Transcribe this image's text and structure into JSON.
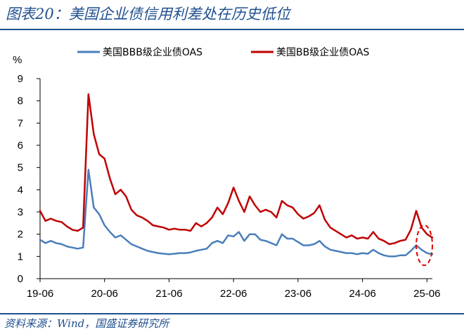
{
  "header": {
    "title": "图表20：美国企业债信用利差处在历史低位"
  },
  "footer": {
    "source": "资料来源：Wind，国盛证券研究所"
  },
  "chart_data": {
    "type": "line",
    "ylabel": "%",
    "ylim": [
      0,
      9
    ],
    "yticks": [
      0,
      1,
      2,
      3,
      4,
      5,
      6,
      7,
      8,
      9
    ],
    "xrange": [
      "2019-06",
      "2025-07"
    ],
    "xticks": [
      {
        "date": "2019-06",
        "label": "19-06"
      },
      {
        "date": "2020-06",
        "label": "20-06"
      },
      {
        "date": "2021-06",
        "label": "21-06"
      },
      {
        "date": "2022-06",
        "label": "22-06"
      },
      {
        "date": "2023-06",
        "label": "23-06"
      },
      {
        "date": "2024-06",
        "label": "24-06"
      },
      {
        "date": "2025-06",
        "label": "25-06"
      }
    ],
    "legend_position": "top",
    "grid": false,
    "series": [
      {
        "name": "美国BBB级企业债OAS",
        "color": "#4a7ebb",
        "points": [
          [
            "2019-06",
            1.75
          ],
          [
            "2019-07",
            1.6
          ],
          [
            "2019-08",
            1.7
          ],
          [
            "2019-09",
            1.6
          ],
          [
            "2019-10",
            1.55
          ],
          [
            "2019-11",
            1.45
          ],
          [
            "2019-12",
            1.4
          ],
          [
            "2020-01",
            1.35
          ],
          [
            "2020-02",
            1.4
          ],
          [
            "2020-03",
            4.9
          ],
          [
            "2020-04",
            3.2
          ],
          [
            "2020-05",
            2.9
          ],
          [
            "2020-06",
            2.4
          ],
          [
            "2020-07",
            2.1
          ],
          [
            "2020-08",
            1.85
          ],
          [
            "2020-09",
            1.95
          ],
          [
            "2020-10",
            1.75
          ],
          [
            "2020-11",
            1.55
          ],
          [
            "2020-12",
            1.45
          ],
          [
            "2021-01",
            1.35
          ],
          [
            "2021-02",
            1.25
          ],
          [
            "2021-03",
            1.2
          ],
          [
            "2021-04",
            1.15
          ],
          [
            "2021-05",
            1.12
          ],
          [
            "2021-06",
            1.1
          ],
          [
            "2021-07",
            1.12
          ],
          [
            "2021-08",
            1.15
          ],
          [
            "2021-09",
            1.15
          ],
          [
            "2021-10",
            1.18
          ],
          [
            "2021-11",
            1.25
          ],
          [
            "2021-12",
            1.3
          ],
          [
            "2022-01",
            1.35
          ],
          [
            "2022-02",
            1.6
          ],
          [
            "2022-03",
            1.7
          ],
          [
            "2022-04",
            1.6
          ],
          [
            "2022-05",
            1.95
          ],
          [
            "2022-06",
            1.9
          ],
          [
            "2022-07",
            2.1
          ],
          [
            "2022-08",
            1.7
          ],
          [
            "2022-09",
            2.0
          ],
          [
            "2022-10",
            2.0
          ],
          [
            "2022-11",
            1.75
          ],
          [
            "2022-12",
            1.7
          ],
          [
            "2023-01",
            1.6
          ],
          [
            "2023-02",
            1.5
          ],
          [
            "2023-03",
            2.0
          ],
          [
            "2023-04",
            1.8
          ],
          [
            "2023-05",
            1.8
          ],
          [
            "2023-06",
            1.65
          ],
          [
            "2023-07",
            1.5
          ],
          [
            "2023-08",
            1.5
          ],
          [
            "2023-09",
            1.55
          ],
          [
            "2023-10",
            1.7
          ],
          [
            "2023-11",
            1.45
          ],
          [
            "2023-12",
            1.3
          ],
          [
            "2024-01",
            1.25
          ],
          [
            "2024-02",
            1.2
          ],
          [
            "2024-03",
            1.15
          ],
          [
            "2024-04",
            1.15
          ],
          [
            "2024-05",
            1.1
          ],
          [
            "2024-06",
            1.15
          ],
          [
            "2024-07",
            1.12
          ],
          [
            "2024-08",
            1.3
          ],
          [
            "2024-09",
            1.15
          ],
          [
            "2024-10",
            1.05
          ],
          [
            "2024-11",
            1.0
          ],
          [
            "2024-12",
            1.0
          ],
          [
            "2025-01",
            1.05
          ],
          [
            "2025-02",
            1.05
          ],
          [
            "2025-03",
            1.25
          ],
          [
            "2025-04",
            1.5
          ],
          [
            "2025-05",
            1.3
          ],
          [
            "2025-06",
            1.15
          ],
          [
            "2025-07",
            1.1
          ]
        ]
      },
      {
        "name": "美国BB级企业债OAS",
        "color": "#c00000",
        "points": [
          [
            "2019-06",
            3.05
          ],
          [
            "2019-07",
            2.6
          ],
          [
            "2019-08",
            2.7
          ],
          [
            "2019-09",
            2.6
          ],
          [
            "2019-10",
            2.55
          ],
          [
            "2019-11",
            2.35
          ],
          [
            "2019-12",
            2.2
          ],
          [
            "2020-01",
            2.15
          ],
          [
            "2020-02",
            2.3
          ],
          [
            "2020-03",
            8.3
          ],
          [
            "2020-04",
            6.5
          ],
          [
            "2020-05",
            5.6
          ],
          [
            "2020-06",
            5.4
          ],
          [
            "2020-07",
            4.5
          ],
          [
            "2020-08",
            3.8
          ],
          [
            "2020-09",
            4.0
          ],
          [
            "2020-10",
            3.7
          ],
          [
            "2020-11",
            3.1
          ],
          [
            "2020-12",
            2.85
          ],
          [
            "2021-01",
            2.75
          ],
          [
            "2021-02",
            2.6
          ],
          [
            "2021-03",
            2.4
          ],
          [
            "2021-04",
            2.35
          ],
          [
            "2021-05",
            2.3
          ],
          [
            "2021-06",
            2.2
          ],
          [
            "2021-07",
            2.25
          ],
          [
            "2021-08",
            2.2
          ],
          [
            "2021-09",
            2.2
          ],
          [
            "2021-10",
            2.15
          ],
          [
            "2021-11",
            2.5
          ],
          [
            "2021-12",
            2.35
          ],
          [
            "2022-01",
            2.5
          ],
          [
            "2022-02",
            2.75
          ],
          [
            "2022-03",
            3.2
          ],
          [
            "2022-04",
            2.9
          ],
          [
            "2022-05",
            3.4
          ],
          [
            "2022-06",
            4.1
          ],
          [
            "2022-07",
            3.5
          ],
          [
            "2022-08",
            3.0
          ],
          [
            "2022-09",
            3.7
          ],
          [
            "2022-10",
            3.3
          ],
          [
            "2022-11",
            3.0
          ],
          [
            "2022-12",
            3.1
          ],
          [
            "2023-01",
            3.0
          ],
          [
            "2023-02",
            2.75
          ],
          [
            "2023-03",
            3.5
          ],
          [
            "2023-04",
            3.3
          ],
          [
            "2023-05",
            3.2
          ],
          [
            "2023-06",
            2.9
          ],
          [
            "2023-07",
            2.7
          ],
          [
            "2023-08",
            2.8
          ],
          [
            "2023-09",
            2.95
          ],
          [
            "2023-10",
            3.3
          ],
          [
            "2023-11",
            2.65
          ],
          [
            "2023-12",
            2.3
          ],
          [
            "2024-01",
            2.15
          ],
          [
            "2024-02",
            2.0
          ],
          [
            "2024-03",
            1.85
          ],
          [
            "2024-04",
            1.95
          ],
          [
            "2024-05",
            1.8
          ],
          [
            "2024-06",
            1.85
          ],
          [
            "2024-07",
            1.8
          ],
          [
            "2024-08",
            2.1
          ],
          [
            "2024-09",
            1.8
          ],
          [
            "2024-10",
            1.7
          ],
          [
            "2024-11",
            1.55
          ],
          [
            "2024-12",
            1.6
          ],
          [
            "2025-01",
            1.7
          ],
          [
            "2025-02",
            1.75
          ],
          [
            "2025-03",
            2.2
          ],
          [
            "2025-04",
            3.05
          ],
          [
            "2025-05",
            2.3
          ],
          [
            "2025-06",
            2.0
          ],
          [
            "2025-07",
            1.85
          ]
        ]
      }
    ],
    "annotation": {
      "shape": "dashed-ellipse",
      "color": "#e00000",
      "x_from": "2025-04",
      "x_to": "2025-07",
      "y_from": 0.6,
      "y_to": 2.4
    }
  }
}
